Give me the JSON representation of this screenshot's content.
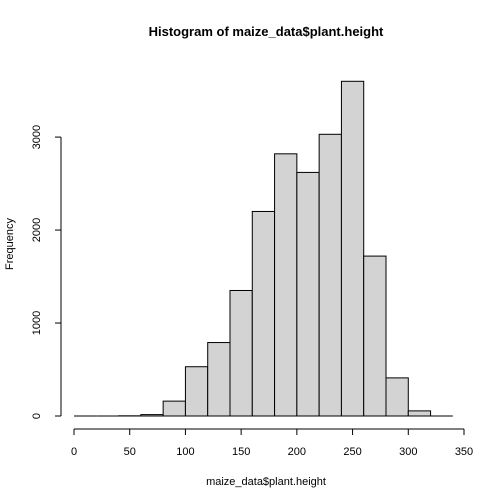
{
  "chart_data": {
    "type": "bar",
    "title": "Histogram of maize_data$plant.height",
    "xlabel": "maize_data$plant.height",
    "ylabel": "Frequency",
    "bin_width": 20,
    "bins": [
      {
        "start": 0,
        "end": 20,
        "count": 0
      },
      {
        "start": 20,
        "end": 40,
        "count": 0
      },
      {
        "start": 40,
        "end": 60,
        "count": 2
      },
      {
        "start": 60,
        "end": 80,
        "count": 15
      },
      {
        "start": 80,
        "end": 100,
        "count": 160
      },
      {
        "start": 100,
        "end": 120,
        "count": 530
      },
      {
        "start": 120,
        "end": 140,
        "count": 790
      },
      {
        "start": 140,
        "end": 160,
        "count": 1350
      },
      {
        "start": 160,
        "end": 180,
        "count": 2200
      },
      {
        "start": 180,
        "end": 200,
        "count": 2820
      },
      {
        "start": 200,
        "end": 220,
        "count": 2620
      },
      {
        "start": 220,
        "end": 240,
        "count": 3030
      },
      {
        "start": 240,
        "end": 260,
        "count": 3600
      },
      {
        "start": 260,
        "end": 280,
        "count": 1720
      },
      {
        "start": 280,
        "end": 300,
        "count": 410
      },
      {
        "start": 300,
        "end": 320,
        "count": 55
      },
      {
        "start": 320,
        "end": 340,
        "count": 0
      }
    ],
    "xlim": [
      0,
      350
    ],
    "ylim": [
      0,
      3700
    ],
    "x_ticks": [
      0,
      50,
      100,
      150,
      200,
      250,
      300,
      350
    ],
    "y_ticks": [
      0,
      1000,
      2000,
      3000
    ],
    "bar_color": "#d3d3d3",
    "grid": false,
    "legend": "none"
  }
}
